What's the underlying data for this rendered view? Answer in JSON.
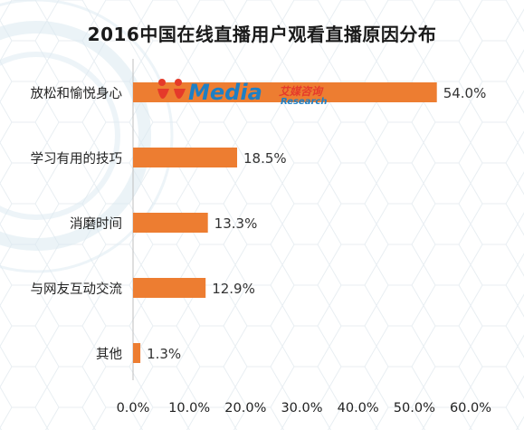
{
  "chart_data": {
    "type": "bar",
    "orientation": "horizontal",
    "title": "2016中国在线直播用户观看直播原因分布",
    "categories": [
      "放松和愉悦身心",
      "学习有用的技巧",
      "消磨时间",
      "与网友互动交流",
      "其他"
    ],
    "values": [
      54.0,
      18.5,
      13.3,
      12.9,
      1.3
    ],
    "value_labels": [
      "54.0%",
      "18.5%",
      "13.3%",
      "12.9%",
      "1.3%"
    ],
    "xlim": [
      0,
      60
    ],
    "x_ticks": [
      0,
      10,
      20,
      30,
      40,
      50,
      60
    ],
    "x_tick_labels": [
      "0.0%",
      "10.0%",
      "20.0%",
      "30.0%",
      "40.0%",
      "50.0%",
      "60.0%"
    ],
    "grid": false,
    "bar_color": "#ed7d31"
  },
  "watermark": {
    "brand": "iiMedia",
    "cn": "艾媒咨询",
    "research": "Research"
  }
}
